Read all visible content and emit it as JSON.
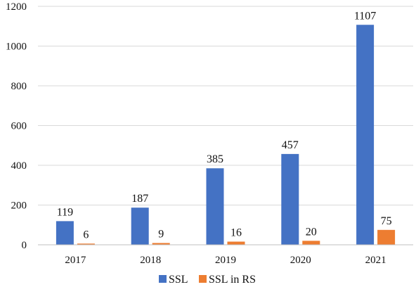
{
  "chart_data": {
    "type": "bar",
    "categories": [
      "2017",
      "2018",
      "2019",
      "2020",
      "2021"
    ],
    "series": [
      {
        "name": "SSL",
        "values": [
          119,
          187,
          385,
          457,
          1107
        ],
        "color": "#4472c4"
      },
      {
        "name": "SSL in RS",
        "values": [
          6,
          9,
          16,
          20,
          75
        ],
        "color": "#ed7d31"
      }
    ],
    "title": "",
    "xlabel": "",
    "ylabel": "",
    "ylim": [
      0,
      1200
    ],
    "yticks": [
      0,
      200,
      400,
      600,
      800,
      1000,
      1200
    ],
    "grid": true,
    "legend": "bottom-center",
    "data_labels": true
  }
}
